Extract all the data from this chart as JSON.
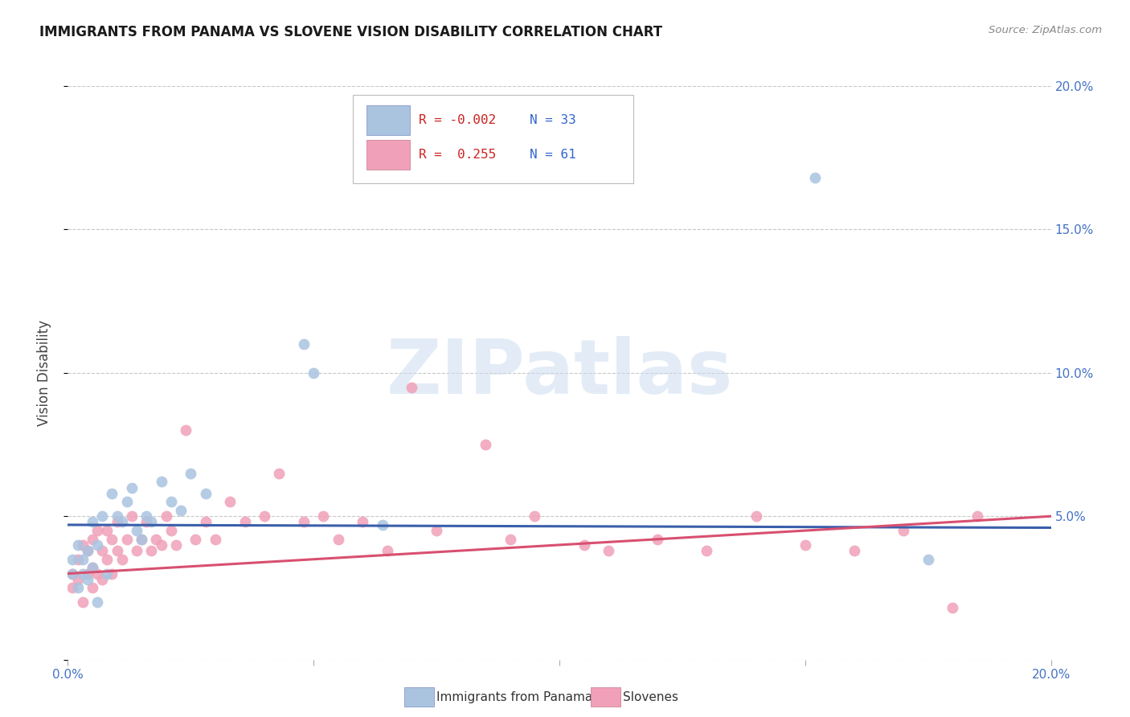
{
  "title": "IMMIGRANTS FROM PANAMA VS SLOVENE VISION DISABILITY CORRELATION CHART",
  "source": "Source: ZipAtlas.com",
  "ylabel": "Vision Disability",
  "xlim": [
    0.0,
    0.2
  ],
  "ylim": [
    0.0,
    0.2
  ],
  "grid_color": "#c8c8c8",
  "background_color": "#ffffff",
  "blue_color": "#aac4e0",
  "pink_color": "#f0a0b8",
  "blue_line_color": "#3a5faa",
  "pink_line_color": "#d85070",
  "legend_R_blue": "-0.002",
  "legend_N_blue": "33",
  "legend_R_pink": "0.255",
  "legend_N_pink": "61",
  "legend_label_blue": "Immigrants from Panama",
  "legend_label_pink": "Slovenes",
  "watermark": "ZIPatlas",
  "blue_x": [
    0.001,
    0.001,
    0.002,
    0.002,
    0.003,
    0.003,
    0.004,
    0.004,
    0.005,
    0.005,
    0.006,
    0.006,
    0.007,
    0.008,
    0.009,
    0.01,
    0.011,
    0.012,
    0.013,
    0.014,
    0.015,
    0.016,
    0.017,
    0.019,
    0.021,
    0.023,
    0.025,
    0.028,
    0.048,
    0.05,
    0.064,
    0.152,
    0.175
  ],
  "blue_y": [
    0.03,
    0.035,
    0.025,
    0.04,
    0.03,
    0.035,
    0.028,
    0.038,
    0.032,
    0.048,
    0.02,
    0.04,
    0.05,
    0.03,
    0.058,
    0.05,
    0.048,
    0.055,
    0.06,
    0.045,
    0.042,
    0.05,
    0.048,
    0.062,
    0.055,
    0.052,
    0.065,
    0.058,
    0.11,
    0.1,
    0.047,
    0.168,
    0.035
  ],
  "pink_x": [
    0.001,
    0.001,
    0.002,
    0.002,
    0.003,
    0.003,
    0.004,
    0.004,
    0.005,
    0.005,
    0.005,
    0.006,
    0.006,
    0.007,
    0.007,
    0.008,
    0.008,
    0.009,
    0.009,
    0.01,
    0.01,
    0.011,
    0.012,
    0.013,
    0.014,
    0.015,
    0.016,
    0.017,
    0.018,
    0.019,
    0.02,
    0.021,
    0.022,
    0.024,
    0.026,
    0.028,
    0.03,
    0.033,
    0.036,
    0.04,
    0.043,
    0.048,
    0.052,
    0.055,
    0.06,
    0.065,
    0.07,
    0.075,
    0.085,
    0.09,
    0.095,
    0.105,
    0.11,
    0.12,
    0.13,
    0.14,
    0.15,
    0.16,
    0.17,
    0.18,
    0.185
  ],
  "pink_y": [
    0.03,
    0.025,
    0.035,
    0.028,
    0.04,
    0.02,
    0.03,
    0.038,
    0.032,
    0.025,
    0.042,
    0.03,
    0.045,
    0.028,
    0.038,
    0.035,
    0.045,
    0.03,
    0.042,
    0.038,
    0.048,
    0.035,
    0.042,
    0.05,
    0.038,
    0.042,
    0.048,
    0.038,
    0.042,
    0.04,
    0.05,
    0.045,
    0.04,
    0.08,
    0.042,
    0.048,
    0.042,
    0.055,
    0.048,
    0.05,
    0.065,
    0.048,
    0.05,
    0.042,
    0.048,
    0.038,
    0.095,
    0.045,
    0.075,
    0.042,
    0.05,
    0.04,
    0.038,
    0.042,
    0.038,
    0.05,
    0.04,
    0.038,
    0.045,
    0.018,
    0.05
  ],
  "blue_line_y_start": 0.047,
  "blue_line_y_end": 0.046,
  "pink_line_y_start": 0.03,
  "pink_line_y_end": 0.05
}
